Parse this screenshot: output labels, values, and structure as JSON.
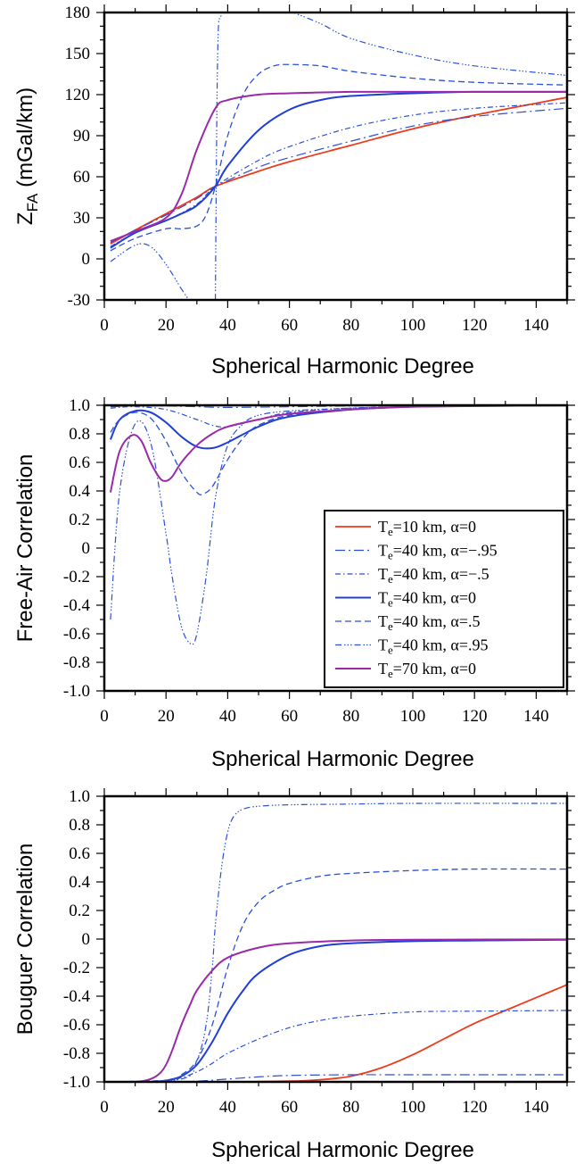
{
  "chart_data": [
    {
      "type": "line",
      "xlabel": "Spherical Harmonic Degree",
      "ylabel_main": "Z",
      "ylabel_sub": "FA",
      "ylabel_unit": " (mGal/km)",
      "xlim": [
        0,
        150
      ],
      "ylim": [
        -30,
        180
      ],
      "xticks": [
        "0",
        "20",
        "40",
        "60",
        "80",
        "100",
        "120",
        "140"
      ],
      "yticks": [
        "-30",
        "0",
        "30",
        "60",
        "90",
        "120",
        "150",
        "180"
      ],
      "series": [
        {
          "style": "te10_a0",
          "x": [
            2,
            10,
            20,
            30,
            36,
            50,
            60,
            80,
            100,
            120,
            150
          ],
          "y": [
            11,
            21,
            33,
            45,
            53,
            64,
            71,
            83,
            95,
            105,
            118
          ]
        },
        {
          "style": "te40_am95",
          "x": [
            2,
            10,
            20,
            30,
            36,
            50,
            60,
            80,
            100,
            120,
            150
          ],
          "y": [
            12,
            21,
            32,
            44,
            53,
            67,
            74,
            86,
            97,
            104,
            110
          ]
        },
        {
          "style": "te40_am5",
          "x": [
            2,
            10,
            20,
            30,
            36,
            50,
            60,
            80,
            100,
            120,
            150
          ],
          "y": [
            9,
            19,
            28,
            40,
            53,
            72,
            82,
            96,
            105,
            110,
            114
          ]
        },
        {
          "style": "te40_a0",
          "x": [
            2,
            10,
            20,
            25,
            30,
            36,
            40,
            50,
            60,
            70,
            80,
            100,
            120,
            150
          ],
          "y": [
            8,
            19,
            28,
            33,
            39,
            53,
            68,
            94,
            109,
            116,
            119,
            121,
            122,
            122
          ]
        },
        {
          "style": "te40_a5",
          "x": [
            2,
            10,
            20,
            25,
            30,
            33,
            36,
            40,
            45,
            50,
            55,
            60,
            70,
            80,
            100,
            120,
            150
          ],
          "y": [
            6,
            15,
            22,
            22,
            24,
            32,
            53,
            90,
            120,
            135,
            141,
            142,
            141,
            137,
            132,
            129,
            127
          ]
        },
        {
          "style": "te40_a95_left",
          "x": [
            2,
            10,
            15,
            20,
            25,
            28,
            30
          ],
          "y": [
            -2,
            10,
            9,
            -4,
            -22,
            -32,
            -40
          ]
        },
        {
          "style": "te40_a95_right",
          "x": [
            36,
            36.3,
            36.6,
            37,
            37.5,
            38
          ],
          "y": [
            -30,
            60,
            130,
            170,
            176,
            178
          ]
        },
        {
          "style": "te40_a95_tail",
          "x": [
            60,
            70,
            80,
            100,
            120,
            150
          ],
          "y": [
            181,
            172,
            161,
            149,
            141,
            134
          ]
        },
        {
          "style": "te70_a0",
          "x": [
            2,
            10,
            20,
            25,
            30,
            36,
            40,
            50,
            60,
            80,
            100,
            150
          ],
          "y": [
            13,
            20,
            30,
            47,
            80,
            110,
            116,
            120,
            121,
            122,
            122,
            122
          ]
        }
      ]
    },
    {
      "type": "line",
      "xlabel": "Spherical Harmonic Degree",
      "ylabel": "Free-Air Correlation",
      "xlim": [
        0,
        150
      ],
      "ylim": [
        -1.0,
        1.0
      ],
      "xticks": [
        "0",
        "20",
        "40",
        "60",
        "80",
        "100",
        "120",
        "140"
      ],
      "yticks": [
        "-1.0",
        "-0.8",
        "-0.6",
        "-0.4",
        "-0.2",
        "0",
        "0.2",
        "0.4",
        "0.6",
        "0.8",
        "1.0"
      ],
      "legend_position": "bottom-right",
      "legend": [
        {
          "style": "te10_a0",
          "pre": "T",
          "sub": "e",
          "post": "=10 km, α=0"
        },
        {
          "style": "te40_am95",
          "pre": "T",
          "sub": "e",
          "post": "=40 km, α=−.95"
        },
        {
          "style": "te40_am5",
          "pre": "T",
          "sub": "e",
          "post": "=40 km, α=−.5"
        },
        {
          "style": "te40_a0",
          "pre": "T",
          "sub": "e",
          "post": "=40 km, α=0"
        },
        {
          "style": "te40_a5",
          "pre": "T",
          "sub": "e",
          "post": "=40 km, α=.5"
        },
        {
          "style": "te40_a95",
          "pre": "T",
          "sub": "e",
          "post": "=40 km, α=.95"
        },
        {
          "style": "te70_a0",
          "pre": "T",
          "sub": "e",
          "post": "=70 km, α=0"
        }
      ],
      "series": [
        {
          "style": "te10_a0",
          "x": [
            2,
            20,
            60,
            100,
            150
          ],
          "y": [
            0.995,
            0.998,
            0.999,
            0.999,
            0.999
          ]
        },
        {
          "style": "te40_am95",
          "x": [
            2,
            10,
            20,
            30,
            40,
            60,
            80,
            100,
            150
          ],
          "y": [
            0.99,
            0.995,
            0.995,
            0.99,
            0.985,
            0.99,
            0.995,
            0.998,
            0.999
          ]
        },
        {
          "style": "te40_am5",
          "x": [
            2,
            10,
            20,
            30,
            35,
            40,
            50,
            60,
            80,
            100,
            150
          ],
          "y": [
            0.98,
            0.99,
            0.97,
            0.9,
            0.86,
            0.85,
            0.9,
            0.95,
            0.98,
            0.99,
            0.999
          ]
        },
        {
          "style": "te40_a0",
          "x": [
            2,
            5,
            10,
            15,
            20,
            25,
            30,
            35,
            40,
            50,
            60,
            80,
            100,
            120,
            150
          ],
          "y": [
            0.76,
            0.9,
            0.96,
            0.95,
            0.88,
            0.78,
            0.71,
            0.7,
            0.74,
            0.85,
            0.92,
            0.97,
            0.99,
            0.995,
            0.999
          ]
        },
        {
          "style": "te40_a5",
          "x": [
            2,
            5,
            10,
            15,
            20,
            25,
            30,
            32,
            35,
            40,
            45,
            50,
            60,
            80,
            100,
            150
          ],
          "y": [
            0.81,
            0.9,
            0.95,
            0.91,
            0.75,
            0.53,
            0.39,
            0.38,
            0.43,
            0.62,
            0.77,
            0.86,
            0.93,
            0.97,
            0.99,
            0.999
          ]
        },
        {
          "style": "te40_a95",
          "x": [
            2,
            5,
            10,
            15,
            20,
            22,
            25,
            28,
            30,
            33,
            36,
            40,
            45,
            50,
            60,
            80,
            100,
            150
          ],
          "y": [
            -0.5,
            0.4,
            0.87,
            0.74,
            0.1,
            -0.2,
            -0.55,
            -0.67,
            -0.6,
            -0.2,
            0.35,
            0.72,
            0.87,
            0.93,
            0.96,
            0.98,
            0.99,
            0.999
          ]
        },
        {
          "style": "te70_a0",
          "x": [
            2,
            5,
            9,
            12,
            15,
            18,
            20,
            22,
            25,
            30,
            35,
            40,
            50,
            60,
            80,
            100,
            150
          ],
          "y": [
            0.39,
            0.68,
            0.79,
            0.75,
            0.6,
            0.49,
            0.47,
            0.5,
            0.6,
            0.72,
            0.8,
            0.85,
            0.9,
            0.94,
            0.97,
            0.99,
            0.999
          ]
        }
      ]
    },
    {
      "type": "line",
      "xlabel": "Spherical Harmonic Degree",
      "ylabel": "Bouguer Correlation",
      "xlim": [
        0,
        150
      ],
      "ylim": [
        -1.0,
        1.0
      ],
      "xticks": [
        "0",
        "20",
        "40",
        "60",
        "80",
        "100",
        "120",
        "140"
      ],
      "yticks": [
        "-1.0",
        "-0.8",
        "-0.6",
        "-0.4",
        "-0.2",
        "0",
        "0.2",
        "0.4",
        "0.6",
        "0.8",
        "1.0"
      ],
      "series": [
        {
          "style": "te10_a0",
          "x": [
            0,
            40,
            60,
            70,
            80,
            90,
            100,
            110,
            120,
            130,
            140,
            150
          ],
          "y": [
            -1,
            -1,
            -0.995,
            -0.985,
            -0.96,
            -0.9,
            -0.81,
            -0.7,
            -0.59,
            -0.5,
            -0.41,
            -0.32
          ]
        },
        {
          "style": "te40_am95",
          "x": [
            0,
            20,
            30,
            40,
            50,
            60,
            80,
            100,
            150
          ],
          "y": [
            -1,
            -1,
            -0.995,
            -0.98,
            -0.965,
            -0.955,
            -0.95,
            -0.95,
            -0.95
          ]
        },
        {
          "style": "te40_am5",
          "x": [
            0,
            20,
            25,
            30,
            35,
            40,
            50,
            60,
            70,
            80,
            100,
            120,
            150
          ],
          "y": [
            -1,
            -0.99,
            -0.97,
            -0.93,
            -0.87,
            -0.8,
            -0.7,
            -0.62,
            -0.57,
            -0.54,
            -0.51,
            -0.505,
            -0.5
          ]
        },
        {
          "style": "te40_a0",
          "x": [
            0,
            15,
            20,
            25,
            30,
            35,
            40,
            45,
            50,
            60,
            70,
            80,
            100,
            120,
            150
          ],
          "y": [
            -1,
            -1,
            -0.99,
            -0.96,
            -0.88,
            -0.72,
            -0.52,
            -0.36,
            -0.24,
            -0.11,
            -0.05,
            -0.03,
            -0.015,
            -0.01,
            -0.005
          ]
        },
        {
          "style": "te40_a5",
          "x": [
            0,
            20,
            25,
            30,
            35,
            40,
            45,
            50,
            55,
            60,
            70,
            80,
            100,
            120,
            150
          ],
          "y": [
            -1,
            -0.99,
            -0.95,
            -0.85,
            -0.6,
            -0.2,
            0.1,
            0.26,
            0.34,
            0.39,
            0.44,
            0.46,
            0.48,
            0.49,
            0.49
          ]
        },
        {
          "style": "te40_a95",
          "x": [
            0,
            25,
            30,
            33,
            35,
            36,
            38,
            40,
            42,
            45,
            50,
            60,
            80,
            100,
            150
          ],
          "y": [
            -1,
            -0.98,
            -0.85,
            -0.6,
            -0.2,
            0.1,
            0.5,
            0.75,
            0.86,
            0.91,
            0.93,
            0.94,
            0.945,
            0.95,
            0.95
          ]
        },
        {
          "style": "te70_a0",
          "x": [
            0,
            10,
            15,
            18,
            20,
            22,
            25,
            28,
            30,
            35,
            40,
            50,
            60,
            80,
            100,
            150
          ],
          "y": [
            -1,
            -1,
            -0.98,
            -0.94,
            -0.88,
            -0.78,
            -0.6,
            -0.45,
            -0.36,
            -0.22,
            -0.13,
            -0.06,
            -0.03,
            -0.01,
            -0.005,
            -0.002
          ]
        }
      ]
    }
  ]
}
